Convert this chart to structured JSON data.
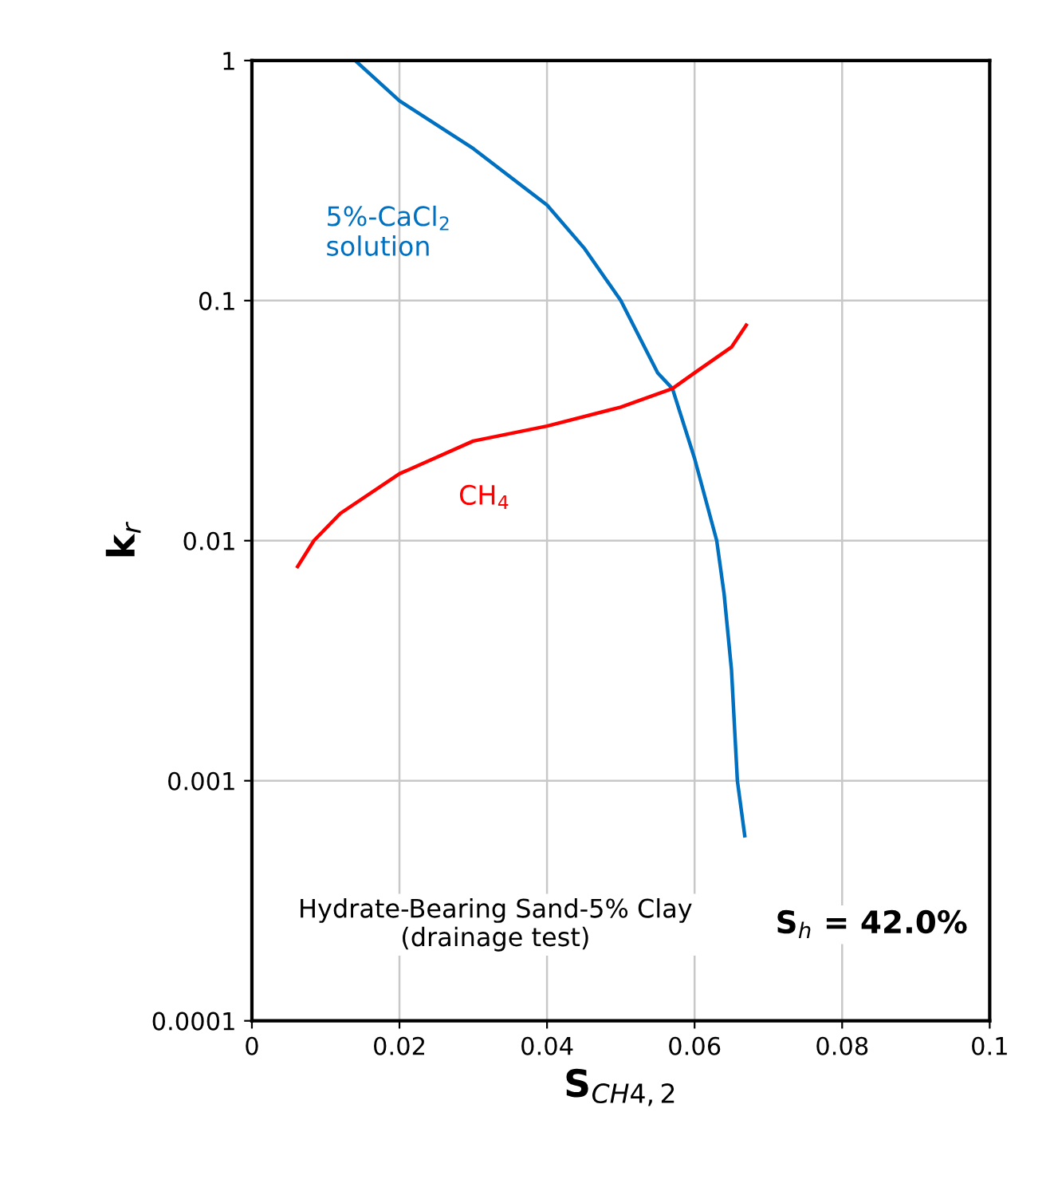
{
  "chart_data": {
    "type": "line",
    "xlabel": "S$_{CH4,2}$",
    "ylabel": "k$_{r}$",
    "log": "y",
    "grid": true,
    "marker": "none",
    "line_style": "solid",
    "xlim": [
      0,
      0.1
    ],
    "xticks": [
      0,
      0.02,
      0.04,
      0.06,
      0.08,
      0.1
    ],
    "ylim": [
      0.0001,
      1
    ],
    "yticks": [
      0.0001,
      0.001,
      0.01,
      0.1,
      1
    ],
    "series": [
      {
        "name": "5%-CaCl$_{2}$\nsolution",
        "color": "#0070c0",
        "x": [
          0.014,
          0.02,
          0.03,
          0.04,
          0.045,
          0.05,
          0.055,
          0.057,
          0.06,
          0.063,
          0.064,
          0.065,
          0.0658,
          0.0668
        ],
        "values": [
          1,
          0.68,
          0.43,
          0.25,
          0.166,
          0.1,
          0.05,
          0.043,
          0.022,
          0.01,
          0.006,
          0.0029,
          0.001,
          0.00059
        ]
      },
      {
        "name": "CH$_{4}$",
        "color": "#ff0000",
        "x": [
          0.0062,
          0.0084,
          0.012,
          0.02,
          0.03,
          0.04,
          0.05,
          0.057,
          0.06,
          0.065,
          0.067
        ],
        "values": [
          0.0078,
          0.01,
          0.013,
          0.019,
          0.026,
          0.03,
          0.036,
          0.043,
          0.05,
          0.064,
          0.079
        ]
      }
    ],
    "annotations": [
      "Hydrate-Bearing Sand-5% Clay\n(drainage test)",
      "S$_{h}$ = 42.0%"
    ]
  }
}
